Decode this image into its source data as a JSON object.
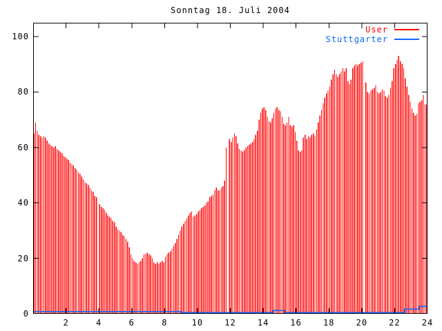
{
  "title": "Sonntag 18. Juli 2004",
  "colors": {
    "user": "#ff0000",
    "stuttgarter": "#0d66ff",
    "axis": "#000000",
    "background": "#ffffff"
  },
  "legend": [
    {
      "label": "User",
      "color": "#ff0000"
    },
    {
      "label": "Stuttgarter",
      "color": "#0d66ff"
    }
  ],
  "chart_data": {
    "type": "bar",
    "title": "Sonntag 18. Juli 2004",
    "xlabel": "",
    "ylabel": "",
    "xlim": [
      0,
      24
    ],
    "ylim": [
      0,
      105
    ],
    "xticks": [
      2,
      4,
      6,
      8,
      10,
      12,
      14,
      16,
      18,
      20,
      22,
      24
    ],
    "yticks": [
      0,
      20,
      40,
      60,
      80,
      100
    ],
    "grid": false,
    "legend_position": "top-right-inside",
    "x_unit": "hour-of-day",
    "sample_start_hour": 0.05,
    "sample_interval_hours": 0.1,
    "missing_samples_at_hours": [
      4.0,
      11.9,
      20.2
    ],
    "series": [
      {
        "name": "User",
        "style": "impulses",
        "color": "#ff0000",
        "values": [
          65,
          69,
          66,
          64.5,
          64,
          63.5,
          64,
          63.5,
          62.5,
          61.5,
          61,
          60.5,
          60,
          60.5,
          59.5,
          59,
          58.5,
          58,
          57,
          56.5,
          56,
          55.5,
          54.5,
          54,
          53.5,
          52.5,
          52,
          51,
          50.5,
          49.5,
          48.5,
          47.5,
          47,
          46.5,
          45.5,
          44.5,
          44,
          42.5,
          42,
          0,
          39.5,
          38.5,
          38,
          37.5,
          36.5,
          35.5,
          35,
          34.5,
          33.5,
          33,
          31.5,
          30.5,
          30,
          29.5,
          28.5,
          28,
          27,
          26,
          24,
          21.5,
          20,
          19,
          18.5,
          18,
          18.5,
          19,
          20,
          21.5,
          21.5,
          22,
          21.5,
          21,
          20,
          18.5,
          18,
          18.5,
          18,
          18.5,
          19,
          18.5,
          20.5,
          21.5,
          22,
          22.5,
          23.5,
          24.5,
          25.5,
          27,
          28.5,
          30,
          31.5,
          32.5,
          33.5,
          34.5,
          35.5,
          36.5,
          37,
          35,
          35.5,
          36,
          37,
          37.5,
          38,
          38.5,
          39,
          40,
          40.5,
          42,
          42.5,
          43,
          44.5,
          45.5,
          44.5,
          44.5,
          45.5,
          46,
          48,
          60,
          0,
          63,
          62,
          63.5,
          65,
          64,
          61.5,
          59.5,
          59,
          58.5,
          59,
          60,
          60.5,
          61,
          61.5,
          62,
          63,
          64.5,
          66,
          70,
          72.5,
          74,
          74.5,
          73.5,
          71,
          69.5,
          69,
          70.5,
          72.5,
          74,
          74.5,
          73.5,
          73,
          71,
          68.5,
          68,
          69,
          71,
          68,
          67.5,
          68,
          65.5,
          62.5,
          59,
          58.5,
          59,
          63.5,
          64.5,
          63,
          64,
          63.5,
          64.5,
          65,
          64,
          66.5,
          69,
          71.5,
          73.5,
          76,
          78,
          79.5,
          80.5,
          82,
          84.5,
          86.5,
          88,
          86.5,
          85.5,
          86.5,
          87.5,
          88.5,
          87.5,
          88.5,
          84,
          83,
          84.5,
          88.5,
          89.5,
          90,
          89.5,
          90,
          90.5,
          91,
          0,
          83.5,
          80,
          79.5,
          80.5,
          81,
          81.5,
          82.5,
          80,
          79.5,
          80,
          81,
          80.5,
          78.5,
          78,
          79,
          81.5,
          84,
          88.5,
          90,
          91.5,
          93,
          91,
          90,
          88.5,
          85,
          82,
          79,
          76.5,
          74,
          72.5,
          71.5,
          72,
          76,
          76.5,
          77,
          79,
          75.5,
          75.5
        ]
      },
      {
        "name": "Stuttgarter",
        "style": "step-line",
        "color": "#0d66ff",
        "segments": [
          {
            "from": 0.0,
            "to": 9.0,
            "value": 0.8
          },
          {
            "from": 9.0,
            "to": 14.6,
            "value": 0.4
          },
          {
            "from": 14.6,
            "to": 15.3,
            "value": 1.2
          },
          {
            "from": 15.3,
            "to": 22.6,
            "value": 0.4
          },
          {
            "from": 22.6,
            "to": 23.5,
            "value": 1.7
          },
          {
            "from": 23.5,
            "to": 24.0,
            "value": 2.7
          }
        ]
      }
    ]
  }
}
